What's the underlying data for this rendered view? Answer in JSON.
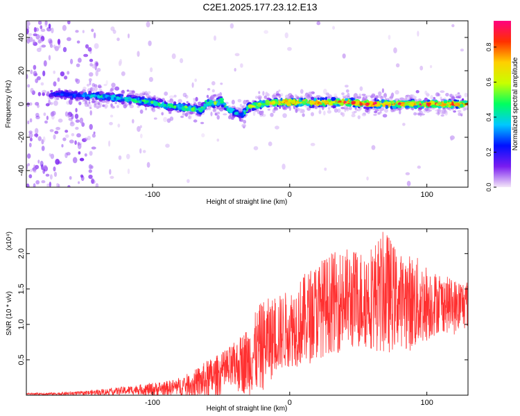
{
  "title": "C2E1.2025.177.23.12.E13",
  "chart_data": [
    {
      "type": "heatmap",
      "title": "C2E1.2025.177.23.12.E13",
      "xlabel": "Height of straight line (km)",
      "ylabel": "Frequency (Hz)",
      "xlim": [
        -192,
        130
      ],
      "ylim": [
        -50,
        50
      ],
      "xticks": [
        -100,
        0,
        100
      ],
      "yticks": [
        -40,
        -20,
        0,
        20,
        40
      ],
      "colorbar": {
        "label": "Normalized spectral amplitude",
        "range": [
          0,
          0.95
        ],
        "ticks": [
          "0.0",
          "0.2",
          "0.4",
          "0.6",
          "0.8"
        ],
        "colors": [
          "#f4e8f8",
          "#7a1cf0",
          "#0010ff",
          "#00c8ff",
          "#00ff60",
          "#c8ff00",
          "#ffd000",
          "#ff3000",
          "#ff0080"
        ]
      },
      "ridge": {
        "x": [
          -190,
          -170,
          -150,
          -140,
          -130,
          -120,
          -110,
          -100,
          -90,
          -80,
          -70,
          -65,
          -60,
          -55,
          -50,
          -45,
          -40,
          -35,
          -30,
          -25,
          -20,
          -10,
          0,
          20,
          40,
          60,
          80,
          100,
          130
        ],
        "y": [
          6,
          6,
          5,
          5,
          4,
          3,
          2,
          1,
          -1,
          -2,
          -3,
          -4,
          1,
          0,
          2,
          -3,
          -5,
          -7,
          -2,
          -1,
          0,
          1,
          1,
          1,
          1,
          0,
          0,
          0,
          0
        ],
        "peak_amplitude": [
          0.15,
          0.25,
          0.35,
          0.45,
          0.45,
          0.5,
          0.5,
          0.5,
          0.5,
          0.55,
          0.55,
          0.5,
          0.55,
          0.55,
          0.55,
          0.5,
          0.4,
          0.35,
          0.6,
          0.7,
          0.75,
          0.8,
          0.85,
          0.85,
          0.9,
          0.9,
          0.9,
          0.9,
          0.9
        ]
      }
    },
    {
      "type": "line",
      "xlabel": "Height of straight line (km)",
      "ylabel": "SNR (10 * v/v)",
      "y_multiplier": "(x10⁴)",
      "xlim": [
        -192,
        130
      ],
      "ylim": [
        0,
        2.35
      ],
      "xticks": [
        -100,
        0,
        100
      ],
      "yticks": [
        0.5,
        1.0,
        1.5,
        2.0
      ],
      "color": "#ff3030",
      "envelope": {
        "x": [
          -192,
          -170,
          -150,
          -130,
          -110,
          -100,
          -90,
          -80,
          -70,
          -60,
          -50,
          -40,
          -30,
          -20,
          -10,
          0,
          10,
          20,
          30,
          40,
          50,
          60,
          70,
          80,
          90,
          100,
          110,
          120,
          130
        ],
        "mean": [
          0.02,
          0.02,
          0.03,
          0.05,
          0.08,
          0.08,
          0.1,
          0.12,
          0.15,
          0.22,
          0.3,
          0.4,
          0.5,
          0.7,
          0.85,
          0.95,
          1.05,
          1.2,
          1.3,
          1.35,
          1.35,
          1.4,
          1.45,
          1.35,
          1.3,
          1.3,
          1.3,
          1.25,
          1.3
        ],
        "max": [
          0.03,
          0.04,
          0.06,
          0.1,
          0.15,
          0.18,
          0.2,
          0.25,
          0.35,
          0.5,
          0.6,
          0.75,
          1.0,
          1.35,
          1.4,
          1.5,
          1.7,
          1.9,
          2.0,
          2.1,
          2.05,
          2.15,
          2.35,
          2.0,
          2.0,
          1.85,
          1.7,
          1.65,
          1.65
        ]
      }
    }
  ]
}
